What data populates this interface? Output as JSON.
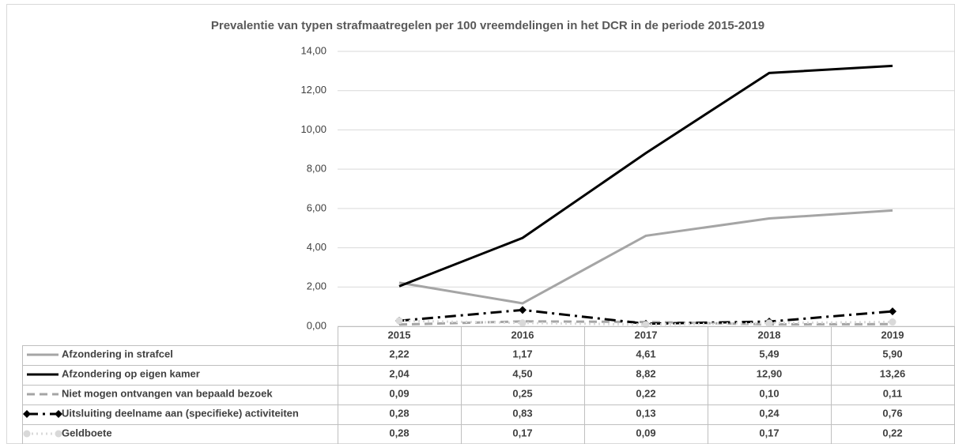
{
  "chart_data": {
    "type": "line",
    "title": "Prevalentie van typen strafmaatregelen per 100 vreemdelingen in het DCR in de periode 2015-2019",
    "categories": [
      "2015",
      "2016",
      "2017",
      "2018",
      "2019"
    ],
    "ylim": [
      0,
      14
    ],
    "yticks": [
      {
        "value": 0,
        "label": "0,00"
      },
      {
        "value": 2,
        "label": "2,00"
      },
      {
        "value": 4,
        "label": "4,00"
      },
      {
        "value": 6,
        "label": "6,00"
      },
      {
        "value": 8,
        "label": "8,00"
      },
      {
        "value": 10,
        "label": "10,00"
      },
      {
        "value": 12,
        "label": "12,00"
      },
      {
        "value": 14,
        "label": "14,00"
      }
    ],
    "grid": true,
    "data_table": true,
    "series": [
      {
        "name": "Afzondering in strafcel",
        "color": "#a5a5a5",
        "dash": "solid",
        "marker": "none",
        "values": [
          2.22,
          1.17,
          4.61,
          5.49,
          5.9
        ],
        "value_labels": [
          "2,22",
          "1,17",
          "4,61",
          "5,49",
          "5,90"
        ]
      },
      {
        "name": "Afzondering op eigen kamer",
        "color": "#000000",
        "dash": "solid",
        "marker": "none",
        "values": [
          2.04,
          4.5,
          8.82,
          12.9,
          13.26
        ],
        "value_labels": [
          "2,04",
          "4,50",
          "8,82",
          "12,90",
          "13,26"
        ]
      },
      {
        "name": "Niet mogen ontvangen van bepaald bezoek",
        "color": "#a5a5a5",
        "dash": "dash",
        "marker": "none",
        "values": [
          0.09,
          0.25,
          0.22,
          0.1,
          0.11
        ],
        "value_labels": [
          "0,09",
          "0,25",
          "0,22",
          "0,10",
          "0,11"
        ]
      },
      {
        "name": "Uitsluiting deelname aan (specifieke) activiteiten",
        "color": "#000000",
        "dash": "dashdot",
        "marker": "diamond",
        "values": [
          0.28,
          0.83,
          0.13,
          0.24,
          0.76
        ],
        "value_labels": [
          "0,28",
          "0,83",
          "0,13",
          "0,24",
          "0,76"
        ]
      },
      {
        "name": "Geldboete",
        "color": "#d9d9d9",
        "dash": "dot",
        "marker": "circle",
        "values": [
          0.28,
          0.17,
          0.09,
          0.17,
          0.22
        ],
        "value_labels": [
          "0,28",
          "0,17",
          "0,09",
          "0,17",
          "0,22"
        ]
      }
    ]
  }
}
